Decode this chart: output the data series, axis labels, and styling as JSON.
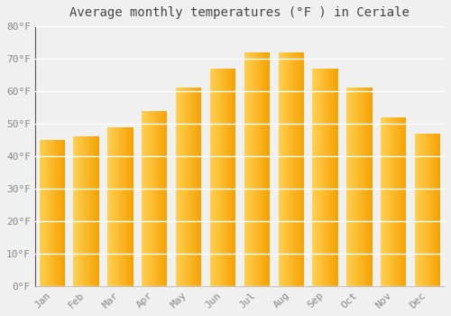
{
  "title": "Average monthly temperatures (°F ) in Ceriale",
  "months": [
    "Jan",
    "Feb",
    "Mar",
    "Apr",
    "May",
    "Jun",
    "Jul",
    "Aug",
    "Sep",
    "Oct",
    "Nov",
    "Dec"
  ],
  "values": [
    45,
    46,
    49,
    54,
    61,
    67,
    72,
    72,
    67,
    61,
    52,
    47
  ],
  "ylim": [
    0,
    80
  ],
  "yticks": [
    0,
    10,
    20,
    30,
    40,
    50,
    60,
    70,
    80
  ],
  "ytick_labels": [
    "0°F",
    "10°F",
    "20°F",
    "30°F",
    "40°F",
    "50°F",
    "60°F",
    "70°F",
    "80°F"
  ],
  "bg_color": "#f0f0f0",
  "grid_color": "#ffffff",
  "bar_color_left": "#FFD050",
  "bar_color_right": "#F5A000",
  "title_fontsize": 10,
  "tick_fontsize": 8,
  "tick_color": "#888888",
  "bar_width": 0.75
}
